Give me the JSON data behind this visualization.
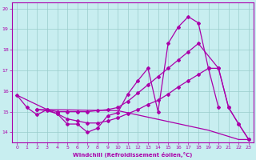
{
  "xlabel": "Windchill (Refroidissement éolien,°C)",
  "bg_color": "#c8eef0",
  "line_color": "#aa00aa",
  "grid_color": "#99cccc",
  "xlim": [
    -0.5,
    23.5
  ],
  "ylim": [
    13.5,
    20.3
  ],
  "yticks": [
    14,
    15,
    16,
    17,
    18,
    19,
    20
  ],
  "xticks": [
    0,
    1,
    2,
    3,
    4,
    5,
    6,
    7,
    8,
    9,
    10,
    11,
    12,
    13,
    14,
    15,
    16,
    17,
    18,
    19,
    20,
    21,
    22,
    23
  ],
  "line1_x": [
    0,
    1,
    2,
    3,
    4,
    5,
    6,
    7,
    8,
    9,
    10,
    11,
    12,
    13,
    14,
    15,
    16,
    17,
    18,
    19,
    20
  ],
  "line1_y": [
    15.8,
    15.2,
    14.85,
    15.1,
    14.9,
    14.4,
    14.4,
    14.0,
    14.2,
    14.8,
    14.95,
    15.85,
    16.5,
    17.1,
    15.0,
    18.3,
    19.1,
    19.6,
    19.3,
    17.1,
    15.2
  ],
  "line2_x": [
    2,
    3,
    4,
    5,
    6,
    7,
    8,
    9,
    10,
    11,
    12,
    13,
    14,
    15,
    16,
    17,
    18,
    20,
    21,
    22,
    23
  ],
  "line2_y": [
    15.1,
    15.1,
    15.0,
    15.0,
    15.0,
    15.0,
    15.05,
    15.1,
    15.2,
    15.5,
    15.9,
    16.3,
    16.7,
    17.1,
    17.5,
    17.9,
    18.3,
    17.1,
    15.2,
    14.4,
    13.65
  ],
  "line3_x": [
    2,
    3,
    4,
    5,
    6,
    7,
    8,
    9,
    10,
    11,
    12,
    13,
    14,
    15,
    16,
    17,
    18,
    19,
    20,
    21,
    22,
    23
  ],
  "line3_y": [
    15.1,
    15.05,
    14.9,
    14.65,
    14.55,
    14.45,
    14.45,
    14.55,
    14.7,
    14.9,
    15.1,
    15.35,
    15.55,
    15.85,
    16.2,
    16.5,
    16.8,
    17.1,
    17.1,
    15.2,
    14.4,
    13.65
  ],
  "line4_x": [
    0,
    3,
    10,
    19,
    22,
    23
  ],
  "line4_y": [
    15.8,
    15.1,
    15.05,
    14.1,
    13.65,
    13.65
  ]
}
